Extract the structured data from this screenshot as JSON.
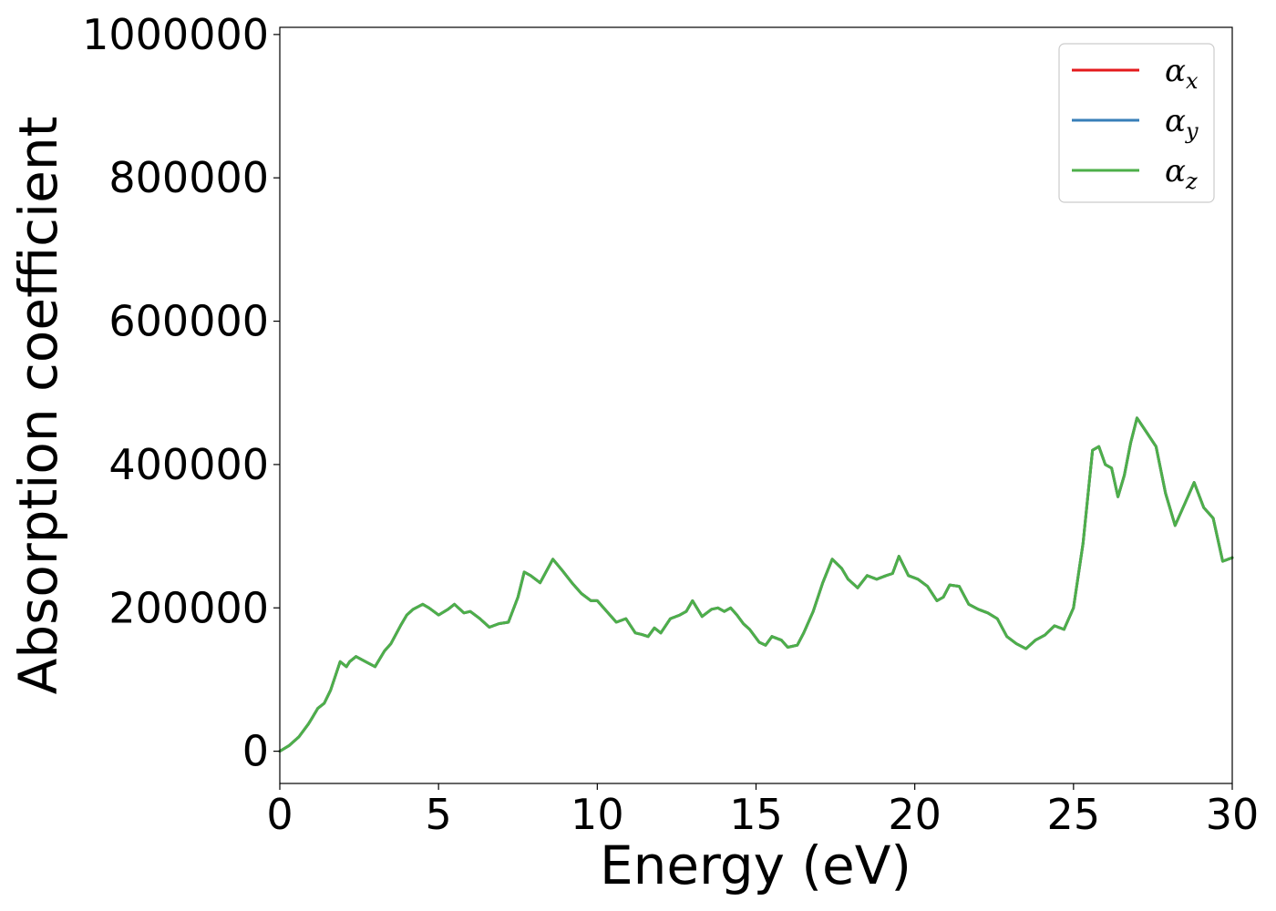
{
  "chart_data": {
    "type": "line",
    "title": "",
    "xlabel": "Energy (eV)",
    "ylabel": "Absorption coefficient",
    "xlim": [
      0,
      30
    ],
    "ylim": [
      -45000,
      1010000
    ],
    "xticks": [
      0,
      5,
      10,
      15,
      20,
      25,
      30
    ],
    "xtick_labels": [
      "0",
      "5",
      "10",
      "15",
      "20",
      "25",
      "30"
    ],
    "yticks": [
      0,
      200000,
      400000,
      600000,
      800000,
      1000000
    ],
    "ytick_labels": [
      "0",
      "200000",
      "400000",
      "600000",
      "800000",
      "1000000"
    ],
    "grid": false,
    "legend": {
      "placement": "top-right"
    },
    "x": [
      0,
      0.3,
      0.6,
      0.9,
      1.0,
      1.2,
      1.4,
      1.6,
      1.9,
      2.1,
      2.2,
      2.4,
      2.7,
      3.0,
      3.3,
      3.5,
      3.8,
      4.0,
      4.2,
      4.5,
      4.7,
      5.0,
      5.3,
      5.5,
      5.8,
      6.0,
      6.3,
      6.6,
      6.9,
      7.2,
      7.5,
      7.7,
      7.9,
      8.2,
      8.6,
      8.9,
      9.2,
      9.5,
      9.8,
      10.0,
      10.3,
      10.6,
      10.9,
      11.2,
      11.4,
      11.6,
      11.8,
      12.0,
      12.3,
      12.6,
      12.8,
      13.0,
      13.3,
      13.6,
      13.8,
      14.0,
      14.2,
      14.4,
      14.6,
      14.8,
      15.1,
      15.3,
      15.5,
      15.8,
      16.0,
      16.3,
      16.5,
      16.8,
      17.1,
      17.4,
      17.7,
      17.9,
      18.2,
      18.5,
      18.8,
      19.1,
      19.3,
      19.5,
      19.8,
      20.1,
      20.4,
      20.7,
      20.9,
      21.1,
      21.4,
      21.7,
      22.0,
      22.3,
      22.6,
      22.9,
      23.2,
      23.5,
      23.8,
      24.1,
      24.4,
      24.7,
      25.0,
      25.3,
      25.6,
      25.8,
      26.0,
      26.2,
      26.4,
      26.6,
      26.8,
      27.0,
      27.3,
      27.6,
      27.9,
      28.2,
      28.5,
      28.8,
      29.1,
      29.4,
      29.7,
      30.0
    ],
    "series": [
      {
        "name": "α_x",
        "color": "#e41a1c",
        "values": [
          0,
          8000,
          20000,
          38000,
          45000,
          60000,
          67000,
          85000,
          125000,
          118000,
          125000,
          132000,
          125000,
          118000,
          140000,
          150000,
          175000,
          190000,
          198000,
          205000,
          200000,
          190000,
          198000,
          205000,
          193000,
          195000,
          185000,
          173000,
          178000,
          180000,
          215000,
          250000,
          245000,
          235000,
          268000,
          252000,
          235000,
          220000,
          210000,
          210000,
          195000,
          180000,
          185000,
          165000,
          163000,
          160000,
          172000,
          165000,
          185000,
          190000,
          195000,
          210000,
          188000,
          198000,
          200000,
          195000,
          200000,
          190000,
          178000,
          170000,
          152000,
          148000,
          160000,
          155000,
          145000,
          148000,
          165000,
          195000,
          235000,
          268000,
          255000,
          240000,
          228000,
          245000,
          240000,
          245000,
          248000,
          272000,
          245000,
          240000,
          230000,
          210000,
          215000,
          232000,
          230000,
          205000,
          198000,
          193000,
          185000,
          160000,
          150000,
          143000,
          155000,
          162000,
          175000,
          170000,
          200000,
          290000,
          420000,
          425000,
          400000,
          395000,
          355000,
          385000,
          430000,
          465000,
          445000,
          425000,
          360000,
          315000,
          345000,
          375000,
          340000,
          325000,
          265000,
          270000
        ]
      },
      {
        "name": "α_y",
        "color": "#377eb8",
        "values": [
          0,
          8000,
          20000,
          38000,
          45000,
          60000,
          67000,
          85000,
          125000,
          118000,
          125000,
          132000,
          125000,
          118000,
          140000,
          150000,
          175000,
          190000,
          198000,
          205000,
          200000,
          190000,
          198000,
          205000,
          193000,
          195000,
          185000,
          173000,
          178000,
          180000,
          215000,
          250000,
          245000,
          235000,
          268000,
          252000,
          235000,
          220000,
          210000,
          210000,
          195000,
          180000,
          185000,
          165000,
          163000,
          160000,
          172000,
          165000,
          185000,
          190000,
          195000,
          210000,
          188000,
          198000,
          200000,
          195000,
          200000,
          190000,
          178000,
          170000,
          152000,
          148000,
          160000,
          155000,
          145000,
          148000,
          165000,
          195000,
          235000,
          268000,
          255000,
          240000,
          228000,
          245000,
          240000,
          245000,
          248000,
          272000,
          245000,
          240000,
          230000,
          210000,
          215000,
          232000,
          230000,
          205000,
          198000,
          193000,
          185000,
          160000,
          150000,
          143000,
          155000,
          162000,
          175000,
          170000,
          200000,
          290000,
          420000,
          425000,
          400000,
          395000,
          355000,
          385000,
          430000,
          465000,
          445000,
          425000,
          360000,
          315000,
          345000,
          375000,
          340000,
          325000,
          265000,
          270000
        ]
      },
      {
        "name": "α_z",
        "color": "#4daf4a",
        "values": [
          0,
          8000,
          20000,
          38000,
          45000,
          60000,
          67000,
          85000,
          125000,
          118000,
          125000,
          132000,
          125000,
          118000,
          140000,
          150000,
          175000,
          190000,
          198000,
          205000,
          200000,
          190000,
          198000,
          205000,
          193000,
          195000,
          185000,
          173000,
          178000,
          180000,
          215000,
          250000,
          245000,
          235000,
          268000,
          252000,
          235000,
          220000,
          210000,
          210000,
          195000,
          180000,
          185000,
          165000,
          163000,
          160000,
          172000,
          165000,
          185000,
          190000,
          195000,
          210000,
          188000,
          198000,
          200000,
          195000,
          200000,
          190000,
          178000,
          170000,
          152000,
          148000,
          160000,
          155000,
          145000,
          148000,
          165000,
          195000,
          235000,
          268000,
          255000,
          240000,
          228000,
          245000,
          240000,
          245000,
          248000,
          272000,
          245000,
          240000,
          230000,
          210000,
          215000,
          232000,
          230000,
          205000,
          198000,
          193000,
          185000,
          160000,
          150000,
          143000,
          155000,
          162000,
          175000,
          170000,
          200000,
          290000,
          420000,
          425000,
          400000,
          395000,
          355000,
          385000,
          430000,
          465000,
          445000,
          425000,
          360000,
          315000,
          345000,
          375000,
          340000,
          325000,
          265000,
          270000
        ]
      }
    ]
  }
}
